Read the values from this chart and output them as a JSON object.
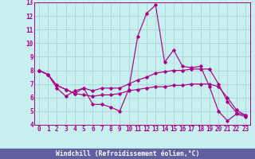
{
  "xlabel": "Windchill (Refroidissement éolien,°C)",
  "background_color": "#c8f0f0",
  "grid_color": "#b0d8d8",
  "line_color": "#aa0088",
  "xlabel_bg": "#6060a0",
  "xlabel_fg": "#ffffff",
  "xlim": [
    -0.5,
    23.5
  ],
  "ylim": [
    4,
    13
  ],
  "yticks": [
    4,
    5,
    6,
    7,
    8,
    9,
    10,
    11,
    12,
    13
  ],
  "xticks": [
    0,
    1,
    2,
    3,
    4,
    5,
    6,
    7,
    8,
    9,
    10,
    11,
    12,
    13,
    14,
    15,
    16,
    17,
    18,
    19,
    20,
    21,
    22,
    23
  ],
  "series": [
    [
      8.0,
      7.7,
      6.7,
      6.1,
      6.5,
      6.7,
      5.5,
      5.5,
      5.3,
      5.0,
      6.6,
      10.5,
      12.2,
      12.8,
      8.6,
      9.5,
      8.3,
      8.2,
      8.3,
      6.8,
      5.0,
      4.3,
      4.8,
      4.6
    ],
    [
      8.0,
      7.7,
      6.9,
      6.6,
      6.3,
      6.7,
      6.5,
      6.7,
      6.7,
      6.7,
      7.0,
      7.3,
      7.5,
      7.8,
      7.9,
      8.0,
      8.0,
      8.1,
      8.1,
      8.1,
      7.0,
      5.7,
      4.9,
      4.7
    ],
    [
      8.0,
      7.7,
      6.9,
      6.6,
      6.3,
      6.2,
      6.1,
      6.2,
      6.2,
      6.3,
      6.5,
      6.6,
      6.7,
      6.8,
      6.8,
      6.9,
      6.9,
      7.0,
      7.0,
      7.0,
      6.8,
      6.0,
      5.1,
      4.7
    ]
  ]
}
